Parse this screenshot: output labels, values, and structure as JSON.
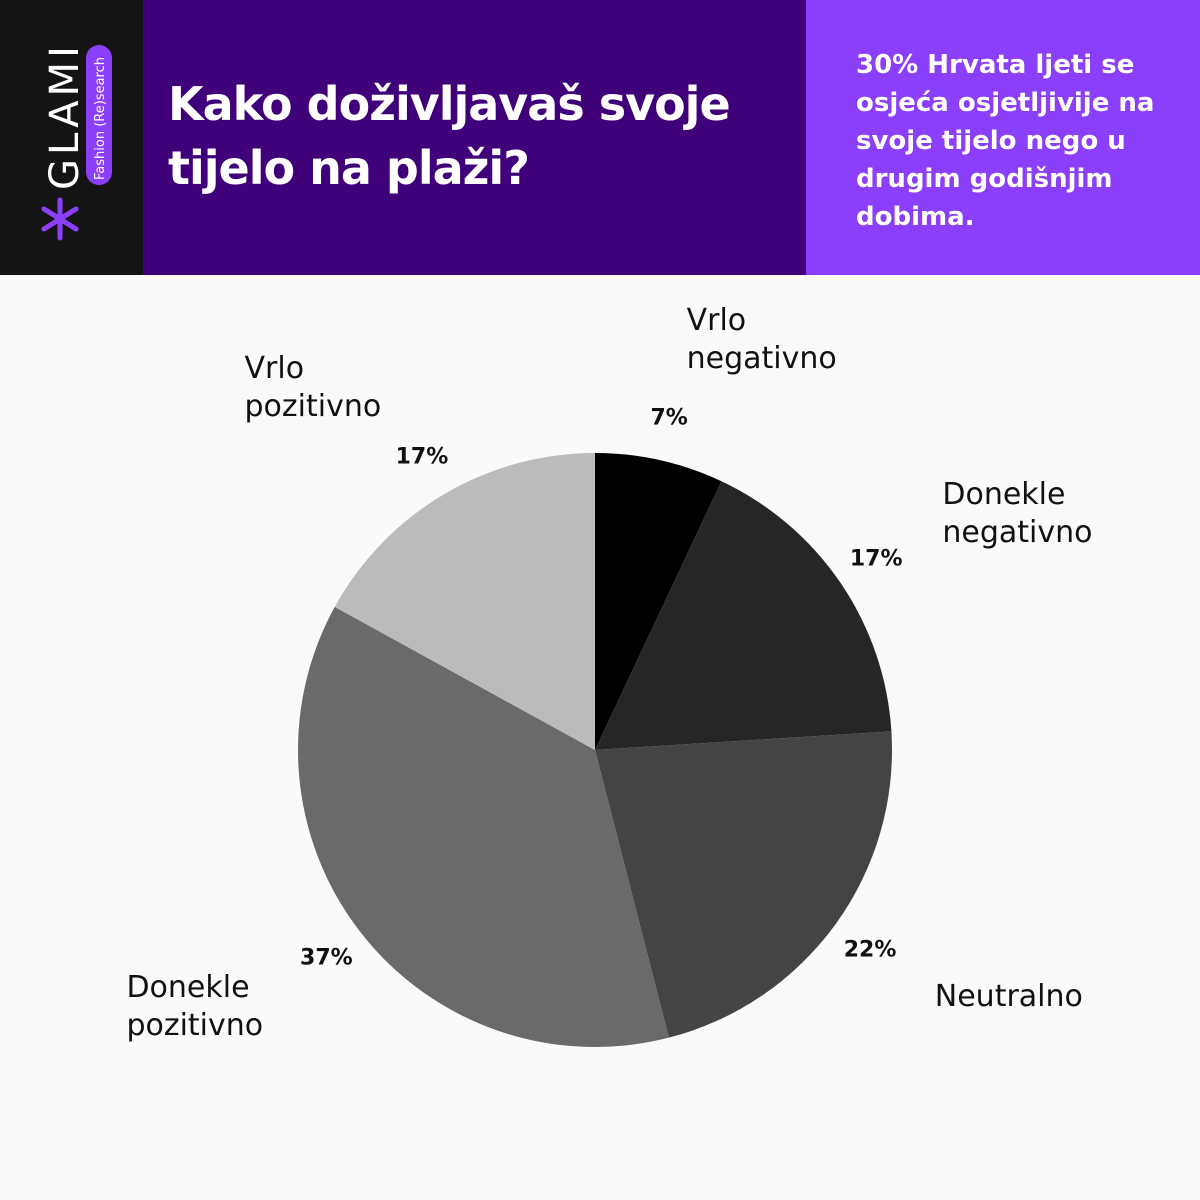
{
  "logo": {
    "name": "GLAMI",
    "tagline": "Fashion (Re)search"
  },
  "header": {
    "title": "Kako doživljavaš svoje tijelo na plaži?",
    "note": "30% Hrvata ljeti se osjeća osjetljivije na svoje tijelo nego u drugim godišnjim dobima."
  },
  "chart_data": {
    "type": "pie",
    "categories": [
      "Vrlo negativno",
      "Donekle negativno",
      "Neutralno",
      "Donekle pozitivno",
      "Vrlo pozitivno"
    ],
    "values": [
      7,
      17,
      22,
      37,
      17
    ],
    "value_labels": [
      "7%",
      "17%",
      "22%",
      "37%",
      "17%"
    ],
    "colors": [
      "#000000",
      "#262626",
      "#444444",
      "#6a6a6a",
      "#bbbbbb"
    ]
  }
}
